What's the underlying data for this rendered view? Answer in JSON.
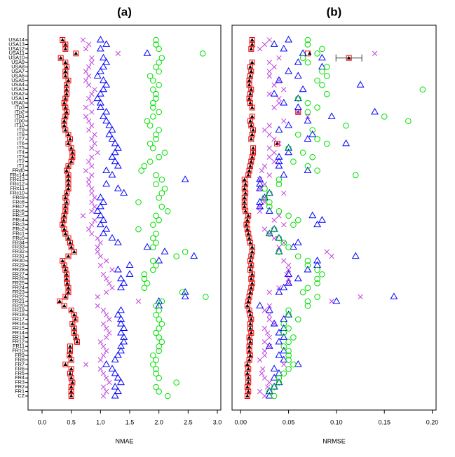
{
  "chart_data": [
    {
      "type": "scatter",
      "title": "(a)",
      "x_label": "NMAE",
      "xlim": [
        -0.24,
        3.06
      ],
      "xticks": [
        {
          "value": 0,
          "label": "0.0"
        },
        0.5,
        {
          "value": 1,
          "label": "1.0"
        },
        1.5,
        {
          "value": 2,
          "label": "2.0"
        },
        2.5,
        {
          "value": 3,
          "label": "3.0"
        }
      ],
      "categories": [
        "CZ",
        "FR1",
        "FR2",
        "FR3",
        "FR4",
        "FR5",
        "FR6",
        "FR7",
        "FR8",
        "FR9",
        "FR10",
        "FR11",
        "FR12",
        "FR13",
        "FR14",
        "FR15",
        "FR16",
        "FR17",
        "FR18",
        "FR19",
        "FR20",
        "FR21",
        "FR22",
        "FR23",
        "FR24",
        "FR25",
        "FR26",
        "FR27",
        "FR28",
        "FR29",
        "FR30",
        "FR31",
        "FR32",
        "FR33",
        "FR34",
        "FRc0",
        "FRc1",
        "FRc2",
        "FRc3",
        "FRc4",
        "FRc5",
        "FRc6",
        "FRc7",
        "FRc8",
        "FRc9",
        "FRc10",
        "FRc11",
        "FRc12",
        "FRc13",
        "FRc14",
        "FRd0",
        "IT1",
        "IT2",
        "IT3",
        "IT4",
        "IT5",
        "IT6",
        "IT7",
        "IT8",
        "IT9",
        "IT10",
        "ITp0",
        "ITp1",
        "ITp2",
        "ITp3",
        "USA0",
        "USA1",
        "USA2",
        "USA3",
        "USA4",
        "USA5",
        "USA6",
        "USA7",
        "USA8",
        "USA9",
        "USA10",
        "USA11",
        "USA12",
        "USA13",
        "USA14"
      ],
      "series": [
        {
          "color": "#ff0000",
          "marker": "square",
          "values": [
            0.5,
            0.5,
            0.5,
            0.52,
            0.5,
            0.48,
            0.5,
            0.4,
            0.5,
            0.47,
            0.48,
            0.48,
            0.6,
            0.58,
            0.55,
            0.55,
            0.52,
            0.57,
            0.55,
            0.5,
            0.38,
            0.3,
            0.4,
            0.45,
            0.45,
            0.43,
            0.42,
            0.42,
            0.4,
            0.38,
            0.35,
            0.45,
            0.55,
            0.5,
            0.48,
            0.45,
            0.4,
            0.38,
            0.35,
            0.37,
            0.38,
            0.4,
            0.4,
            0.42,
            0.4,
            0.42,
            0.45,
            0.45,
            0.45,
            0.45,
            0.42,
            0.45,
            0.5,
            0.52,
            0.52,
            0.5,
            0.45,
            0.48,
            0.45,
            0.4,
            0.38,
            0.38,
            0.4,
            0.42,
            0.4,
            0.38,
            0.4,
            0.42,
            0.42,
            0.42,
            0.45,
            0.4,
            0.4,
            0.42,
            0.4,
            0.32,
            0.58,
            0.4,
            0.4,
            0.35
          ]
        },
        {
          "color": "#000000",
          "marker": "filled-triangle",
          "values": [
            0.5,
            0.5,
            0.5,
            0.52,
            0.5,
            0.48,
            0.5,
            0.4,
            0.5,
            0.47,
            0.48,
            0.48,
            0.6,
            0.58,
            0.55,
            0.55,
            0.52,
            0.57,
            0.55,
            0.5,
            0.38,
            0.3,
            0.4,
            0.45,
            0.45,
            0.43,
            0.42,
            0.42,
            0.4,
            0.38,
            0.35,
            0.45,
            0.55,
            0.5,
            0.48,
            0.45,
            0.4,
            0.38,
            0.35,
            0.37,
            0.38,
            0.4,
            0.4,
            0.42,
            0.4,
            0.42,
            0.45,
            0.45,
            0.45,
            0.45,
            0.42,
            0.45,
            0.5,
            0.52,
            0.52,
            0.5,
            0.45,
            0.48,
            0.45,
            0.4,
            0.38,
            0.38,
            0.4,
            0.42,
            0.4,
            0.38,
            0.4,
            0.42,
            0.42,
            0.42,
            0.45,
            0.4,
            0.4,
            0.42,
            0.4,
            0.32,
            0.58,
            0.4,
            0.4,
            0.35
          ]
        },
        {
          "color": "#c040e0",
          "marker": "cross",
          "values": [
            1.05,
            1.1,
            1.05,
            1.15,
            1.1,
            1.05,
            1.0,
            0.75,
            1.0,
            1.05,
            1.1,
            1.05,
            1.0,
            1.1,
            1.15,
            1.1,
            1.05,
            1.15,
            1.1,
            1.05,
            0.95,
            1.65,
            0.95,
            1.1,
            1.2,
            1.15,
            1.1,
            1.05,
            1.2,
            1.0,
            1.1,
            1.0,
            0.95,
            0.95,
            1.0,
            0.95,
            0.85,
            0.8,
            0.85,
            0.9,
            0.7,
            0.85,
            0.9,
            0.85,
            0.9,
            0.85,
            0.85,
            0.8,
            0.8,
            0.85,
            0.75,
            0.85,
            0.8,
            0.85,
            0.95,
            0.85,
            0.9,
            0.85,
            0.9,
            0.8,
            0.85,
            0.8,
            0.75,
            0.85,
            0.75,
            0.85,
            0.8,
            0.85,
            0.9,
            0.8,
            0.75,
            0.8,
            0.75,
            0.8,
            0.85,
            0.85,
            1.3,
            0.75,
            0.8,
            0.7
          ]
        },
        {
          "color": "#0000ff",
          "marker": "triangle",
          "values": [
            1.25,
            1.3,
            1.25,
            1.35,
            1.3,
            1.25,
            1.2,
            1.1,
            1.25,
            1.3,
            1.35,
            1.35,
            1.4,
            1.4,
            1.35,
            1.4,
            1.35,
            1.35,
            1.3,
            1.35,
            2.0,
            2.0,
            2.45,
            2.45,
            1.35,
            1.4,
            1.35,
            1.5,
            1.3,
            1.5,
            2.0,
            2.6,
            2.1,
            1.8,
            1.3,
            1.2,
            1.05,
            1.1,
            1.0,
            1.05,
            1.0,
            0.95,
            1.0,
            1.05,
            1.0,
            1.4,
            1.3,
            1.1,
            2.45,
            1.2,
            1.1,
            1.3,
            1.25,
            1.2,
            1.25,
            1.3,
            1.25,
            1.2,
            1.15,
            1.2,
            1.15,
            1.1,
            1.05,
            1.1,
            1.0,
            1.0,
            0.95,
            1.0,
            1.05,
            1.1,
            1.05,
            0.95,
            1.0,
            1.05,
            1.1,
            1.05,
            1.8,
            1.0,
            1.1,
            1.0
          ]
        },
        {
          "color": "#00e000",
          "marker": "circle",
          "values": [
            2.15,
            2.0,
            1.95,
            2.3,
            2.0,
            1.95,
            1.95,
            1.9,
            1.95,
            1.9,
            2.0,
            2.0,
            2.05,
            2.0,
            1.95,
            2.0,
            2.05,
            2.0,
            1.95,
            2.0,
            1.95,
            2.05,
            2.8,
            2.4,
            1.75,
            1.8,
            1.75,
            1.75,
            1.9,
            1.95,
            1.9,
            2.3,
            2.45,
            1.9,
            1.95,
            1.9,
            1.95,
            1.65,
            1.9,
            2.0,
            1.95,
            2.15,
            2.05,
            1.65,
            2.0,
            2.05,
            2.1,
            1.95,
            2.05,
            1.95,
            1.7,
            1.75,
            1.85,
            2.0,
            2.1,
            1.9,
            1.85,
            1.95,
            1.95,
            2.0,
            1.85,
            1.8,
            1.9,
            2.0,
            1.9,
            1.9,
            1.95,
            1.95,
            1.9,
            2.0,
            1.9,
            1.85,
            2.0,
            1.95,
            2.0,
            2.05,
            2.75,
            2.0,
            1.95,
            1.95
          ]
        }
      ]
    },
    {
      "type": "scatter",
      "title": "(b)",
      "x_label": "NRMSE",
      "xlim": [
        -0.009,
        0.204
      ],
      "xticks": [
        {
          "value": 0,
          "label": "0.00"
        },
        0.05,
        {
          "value": 0.1,
          "label": "0.10"
        },
        0.15,
        {
          "value": 0.2,
          "label": "0.20"
        }
      ],
      "series": [
        {
          "color": "#ff0000",
          "marker": "square",
          "values": [
            0.007,
            0.008,
            0.007,
            0.008,
            0.008,
            0.007,
            0.008,
            0.007,
            0.009,
            0.01,
            0.009,
            0.009,
            0.01,
            0.009,
            0.011,
            0.01,
            0.01,
            0.011,
            0.01,
            0.009,
            0.007,
            0.008,
            0.009,
            0.01,
            0.011,
            0.012,
            0.011,
            0.012,
            0.01,
            0.011,
            0.01,
            0.011,
            0.012,
            0.012,
            0.01,
            0.009,
            0.008,
            0.007,
            0.006,
            0.007,
            0.008,
            0.005,
            0.004,
            0.004,
            0.004,
            0.005,
            0.004,
            0.005,
            0.004,
            0.008,
            0.009,
            0.01,
            0.011,
            0.012,
            0.013,
            0.013,
            0.038,
            0.011,
            0.012,
            0.013,
            0.011,
            0.01,
            0.012,
            0.06,
            0.012,
            0.01,
            0.009,
            0.01,
            0.011,
            0.009,
            0.009,
            0.01,
            0.011,
            0.01,
            0.012,
            0.113,
            0.07,
            0.011,
            0.012,
            0.012
          ],
          "errors": [
            null,
            null,
            null,
            null,
            null,
            null,
            null,
            null,
            null,
            null,
            null,
            null,
            null,
            null,
            null,
            null,
            null,
            null,
            null,
            null,
            null,
            null,
            null,
            null,
            null,
            null,
            null,
            null,
            null,
            null,
            null,
            null,
            null,
            null,
            null,
            null,
            null,
            null,
            null,
            null,
            null,
            null,
            null,
            null,
            null,
            null,
            null,
            null,
            null,
            null,
            null,
            null,
            null,
            null,
            null,
            null,
            null,
            null,
            null,
            null,
            null,
            null,
            null,
            null,
            null,
            null,
            null,
            null,
            null,
            null,
            null,
            null,
            null,
            null,
            null,
            0.0135,
            null,
            null,
            null,
            null
          ]
        },
        {
          "color": "#000000",
          "marker": "filled-triangle",
          "values": [
            0.007,
            0.008,
            0.007,
            0.008,
            0.008,
            0.007,
            0.008,
            0.007,
            0.009,
            0.01,
            0.009,
            0.009,
            0.01,
            0.009,
            0.011,
            0.01,
            0.01,
            0.011,
            0.01,
            0.009,
            0.007,
            0.008,
            0.009,
            0.01,
            0.011,
            0.012,
            0.011,
            0.012,
            0.01,
            0.011,
            0.01,
            0.011,
            0.012,
            0.012,
            0.01,
            0.009,
            0.008,
            0.007,
            0.006,
            0.007,
            0.008,
            0.005,
            0.004,
            0.004,
            0.004,
            0.005,
            0.004,
            0.005,
            0.004,
            0.008,
            0.009,
            0.01,
            0.011,
            0.012,
            0.013,
            0.013,
            0.038,
            0.011,
            0.012,
            0.013,
            0.011,
            0.01,
            0.012,
            0.06,
            0.012,
            0.01,
            0.009,
            0.01,
            0.011,
            0.009,
            0.009,
            0.01,
            0.011,
            0.01,
            0.012,
            0.113,
            0.072,
            0.011,
            0.012,
            0.012
          ]
        },
        {
          "color": "#c040e0",
          "marker": "cross",
          "values": [
            0.025,
            0.02,
            0.028,
            0.03,
            0.025,
            0.022,
            0.023,
            0.045,
            0.02,
            0.025,
            0.025,
            0.03,
            0.025,
            0.03,
            0.028,
            0.025,
            0.035,
            0.03,
            0.03,
            0.025,
            0.03,
            0.095,
            0.125,
            0.03,
            0.04,
            0.05,
            0.05,
            0.048,
            0.05,
            0.05,
            0.045,
            0.095,
            0.09,
            0.04,
            0.045,
            0.035,
            0.03,
            0.025,
            0.045,
            0.035,
            0.04,
            0.02,
            0.02,
            0.025,
            0.025,
            0.045,
            0.02,
            0.025,
            0.02,
            0.03,
            0.022,
            0.025,
            0.035,
            0.03,
            0.035,
            0.03,
            0.04,
            0.035,
            0.03,
            0.025,
            0.03,
            0.045,
            0.07,
            0.06,
            0.035,
            0.04,
            0.04,
            0.03,
            0.045,
            0.035,
            0.04,
            0.03,
            0.03,
            0.035,
            0.03,
            0.04,
            0.14,
            0.02,
            0.025,
            0.03
          ]
        },
        {
          "color": "#0000ff",
          "marker": "triangle",
          "values": [
            0.03,
            0.03,
            0.035,
            0.04,
            0.035,
            0.04,
            0.035,
            0.06,
            0.045,
            0.04,
            0.045,
            0.03,
            0.04,
            0.045,
            0.04,
            0.045,
            0.035,
            0.045,
            0.05,
            0.03,
            0.02,
            0.1,
            0.16,
            0.04,
            0.045,
            0.05,
            0.06,
            0.05,
            0.07,
            0.08,
            0.08,
            0.12,
            0.04,
            0.055,
            0.06,
            0.04,
            0.03,
            0.035,
            0.08,
            0.085,
            0.075,
            0.03,
            0.02,
            0.02,
            0.025,
            0.03,
            0.02,
            0.02,
            0.02,
            0.045,
            0.07,
            0.04,
            0.04,
            0.04,
            0.05,
            0.05,
            0.11,
            0.07,
            0.075,
            0.04,
            0.05,
            0.07,
            0.095,
            0.14,
            0.06,
            0.045,
            0.06,
            0.035,
            0.065,
            0.125,
            0.04,
            0.06,
            0.05,
            0.085,
            0.06,
            0.085,
            0.065,
            0.045,
            0.035,
            0.05
          ]
        },
        {
          "color": "#00e000",
          "marker": "circle",
          "values": [
            0.035,
            0.03,
            0.035,
            0.04,
            0.04,
            0.045,
            0.05,
            0.055,
            0.05,
            0.05,
            0.05,
            0.045,
            0.05,
            0.055,
            0.045,
            0.05,
            0.045,
            0.06,
            0.05,
            0.05,
            0.07,
            0.07,
            0.08,
            0.065,
            0.07,
            0.08,
            0.08,
            0.085,
            0.08,
            0.07,
            0.07,
            0.06,
            0.04,
            0.05,
            0.045,
            0.04,
            0.03,
            0.035,
            0.055,
            0.06,
            0.05,
            0.04,
            0.03,
            0.03,
            0.025,
            0.03,
            0.025,
            0.04,
            0.04,
            0.12,
            0.08,
            0.07,
            0.055,
            0.075,
            0.065,
            0.05,
            0.09,
            0.08,
            0.06,
            0.075,
            0.11,
            0.175,
            0.15,
            0.07,
            0.08,
            0.07,
            0.06,
            0.09,
            0.19,
            0.085,
            0.08,
            0.09,
            0.085,
            0.09,
            0.07,
            0.065,
            0.08,
            0.085,
            0.07,
            0.07
          ]
        }
      ]
    }
  ]
}
